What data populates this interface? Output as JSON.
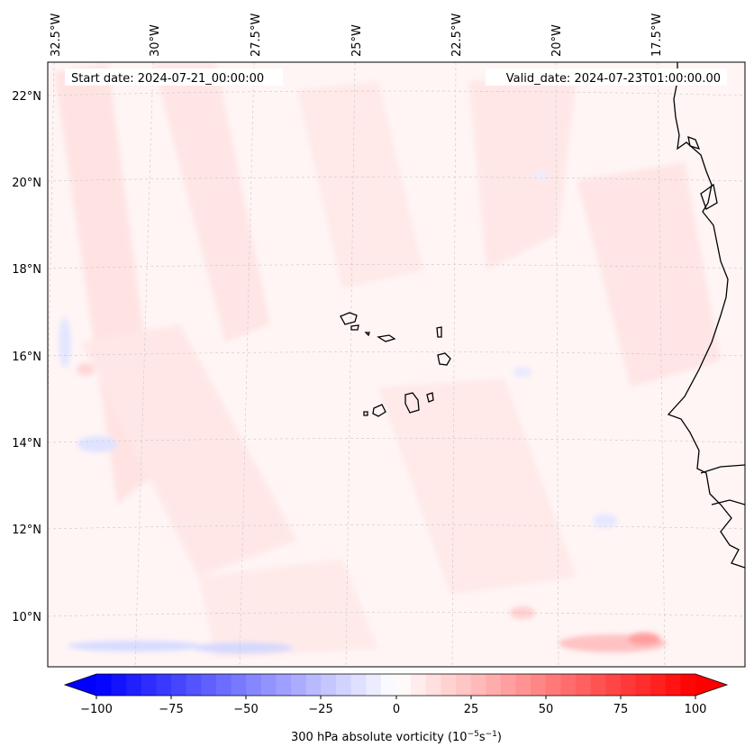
{
  "header": {
    "start_date": "Start date: 2024-07-21_00:00:00",
    "valid_date": "Valid_date: 2024-07-23T01:00:00.00"
  },
  "map": {
    "longitude_labels": [
      "32.5°W",
      "30°W",
      "27.5°W",
      "25°W",
      "22.5°W",
      "20°W",
      "17.5°W"
    ],
    "latitude_labels": [
      "22°N",
      "20°N",
      "18°N",
      "16°N",
      "14°N",
      "12°N",
      "10°N"
    ],
    "gridlines": true,
    "coastline_color": "#000000"
  },
  "colorbar": {
    "label_prefix": "300 hPa absolute vorticity (10",
    "label_exp1": "−5",
    "label_mid": "s",
    "label_exp2": "−1",
    "label_suffix": ")",
    "ticks": [
      "−100",
      "−75",
      "−50",
      "−25",
      "0",
      "25",
      "50",
      "75",
      "100"
    ],
    "min_color": "#0000ff",
    "max_color": "#ff0000",
    "extend": "both"
  }
}
